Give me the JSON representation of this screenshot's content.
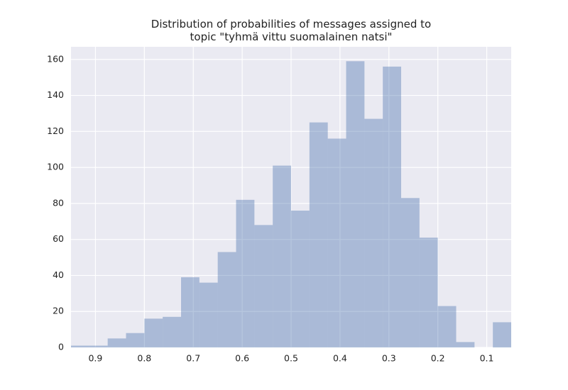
{
  "chart_data": {
    "type": "histogram",
    "title": "Distribution of probabilities of messages assigned to\ntopic \"tyhmä vittu suomalainen natsi\"",
    "bins": [
      0.05,
      0.0875,
      0.125,
      0.1625,
      0.2,
      0.2375,
      0.275,
      0.3125,
      0.35,
      0.3875,
      0.425,
      0.4625,
      0.5,
      0.5375,
      0.575,
      0.6125,
      0.65,
      0.6875,
      0.725,
      0.7625,
      0.8,
      0.8375,
      0.875,
      0.9125,
      0.95
    ],
    "values": [
      14,
      0,
      3,
      23,
      61,
      83,
      156,
      127,
      159,
      116,
      125,
      76,
      101,
      68,
      82,
      53,
      36,
      39,
      17,
      16,
      8,
      5,
      1,
      1
    ],
    "color": "#4c72b0",
    "xlim": [
      0.95,
      0.05
    ],
    "xticks": [
      0.9,
      0.8,
      0.7,
      0.6,
      0.5,
      0.4,
      0.3,
      0.2,
      0.1
    ],
    "ylim": [
      0,
      167
    ],
    "yticks": [
      0,
      20,
      40,
      60,
      80,
      100,
      120,
      140,
      160
    ],
    "grid": true
  }
}
